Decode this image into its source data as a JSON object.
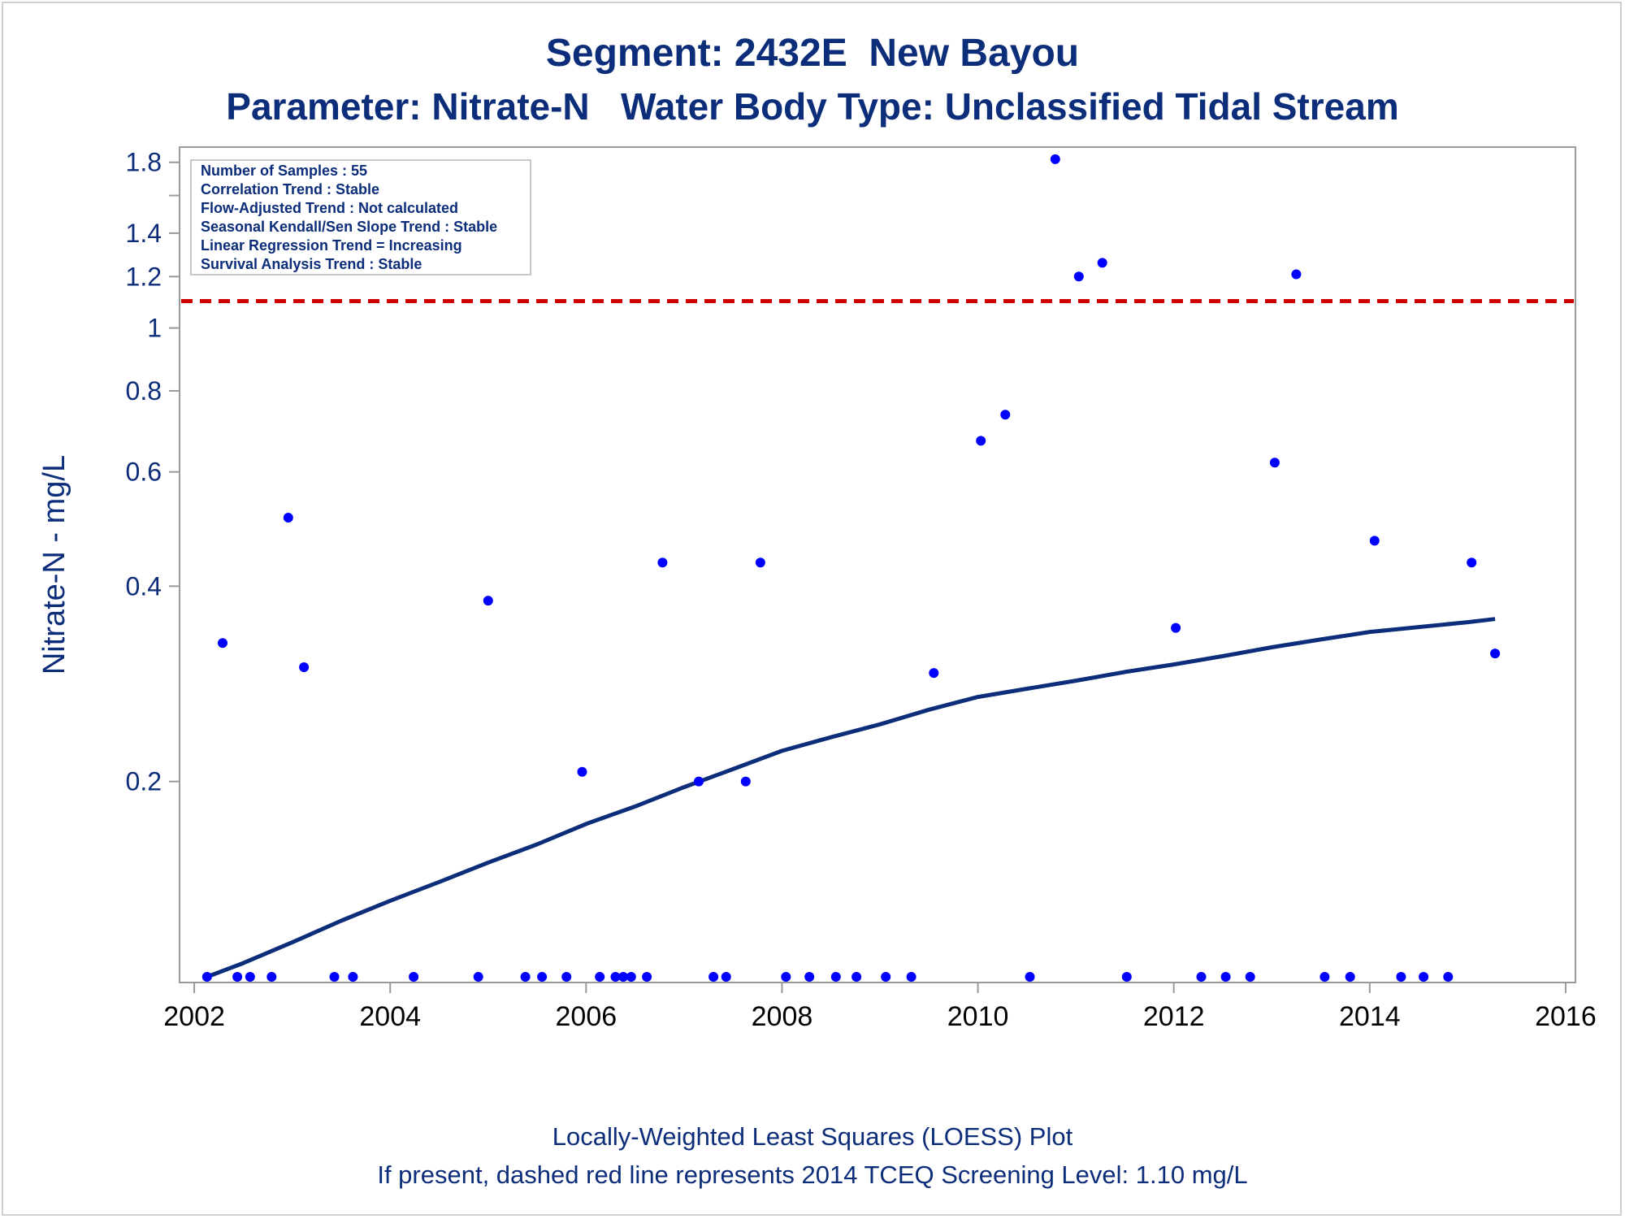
{
  "header": {
    "title": "Segment: 2432E  New Bayou",
    "subtitle": "Parameter: Nitrate-N   Water Body Type: Unclassified Tidal Stream"
  },
  "footer": {
    "line1": "Locally-Weighted Least Squares (LOESS) Plot",
    "line2": "If present, dashed red line represents 2014 TCEQ Screening Level: 1.10 mg/L"
  },
  "stats_box": {
    "lines": [
      "Number of Samples : 55",
      "Correlation Trend : Stable",
      "Flow-Adjusted Trend : Not calculated",
      "Seasonal Kendall/Sen Slope Trend : Stable",
      "Linear Regression Trend = Increasing",
      "Survival Analysis Trend : Stable"
    ]
  },
  "colors": {
    "text": "#0c2d7a",
    "points": "#0000ff",
    "loess_line": "#0c2d7a",
    "screening_line": "#d00000",
    "axis": "#999999"
  },
  "chart_data": {
    "type": "scatter",
    "ylabel": "Nitrate-N - mg/L",
    "xlabel": "",
    "x_scale": "linear",
    "y_scale": "log",
    "xlim": [
      2001.85,
      2016.1
    ],
    "ylim": [
      0.098,
      1.9
    ],
    "x_ticks": [
      2002,
      2004,
      2006,
      2008,
      2010,
      2012,
      2014,
      2016
    ],
    "y_ticks": [
      0.2,
      0.4,
      0.6,
      0.8,
      1,
      1.2,
      1.4,
      1.8
    ],
    "y_ticks_unlabeled": [
      1.6
    ],
    "grid": false,
    "screening_level": 1.1,
    "series": [
      {
        "type": "scatter",
        "x": [
          2002.13,
          2002.29,
          2002.44,
          2002.57,
          2002.79,
          2002.96,
          2003.12,
          2003.43,
          2003.62,
          2004.24,
          2004.9,
          2005.0,
          2005.38,
          2005.55,
          2005.8,
          2005.96,
          2006.14,
          2006.3,
          2006.38,
          2006.46,
          2006.62,
          2006.78,
          2007.15,
          2007.3,
          2007.43,
          2007.63,
          2007.78,
          2008.04,
          2008.28,
          2008.55,
          2008.76,
          2009.06,
          2009.32,
          2009.55,
          2010.03,
          2010.28,
          2010.53,
          2010.79,
          2011.03,
          2011.27,
          2011.52,
          2012.02,
          2012.28,
          2012.53,
          2012.78,
          2013.03,
          2013.25,
          2013.54,
          2013.8,
          2014.05,
          2014.32,
          2014.55,
          2014.8,
          2015.04,
          2015.28
        ],
        "y": [
          0.1,
          0.327,
          0.1,
          0.1,
          0.1,
          0.51,
          0.3,
          0.1,
          0.1,
          0.1,
          0.1,
          0.38,
          0.1,
          0.1,
          0.1,
          0.207,
          0.1,
          0.1,
          0.1,
          0.1,
          0.1,
          0.435,
          0.2,
          0.1,
          0.1,
          0.2,
          0.435,
          0.1,
          0.1,
          0.1,
          0.1,
          0.1,
          0.1,
          0.294,
          0.67,
          0.735,
          0.1,
          1.82,
          1.2,
          1.26,
          0.1,
          0.345,
          0.1,
          0.1,
          0.1,
          0.62,
          1.21,
          0.1,
          0.1,
          0.47,
          0.1,
          0.1,
          0.1,
          0.435,
          0.315
        ]
      },
      {
        "type": "line",
        "x": [
          2002.13,
          2002.5,
          2003.0,
          2003.5,
          2004.0,
          2004.5,
          2005.0,
          2005.5,
          2006.0,
          2006.5,
          2007.0,
          2007.5,
          2008.0,
          2008.5,
          2009.0,
          2009.5,
          2010.0,
          2010.5,
          2011.0,
          2011.5,
          2012.0,
          2012.5,
          2013.0,
          2013.5,
          2014.0,
          2014.5,
          2015.0,
          2015.28
        ],
        "y": [
          0.1,
          0.105,
          0.113,
          0.122,
          0.131,
          0.14,
          0.15,
          0.16,
          0.172,
          0.183,
          0.196,
          0.209,
          0.223,
          0.234,
          0.245,
          0.258,
          0.27,
          0.278,
          0.286,
          0.295,
          0.303,
          0.312,
          0.322,
          0.331,
          0.34,
          0.346,
          0.352,
          0.356
        ]
      }
    ]
  }
}
